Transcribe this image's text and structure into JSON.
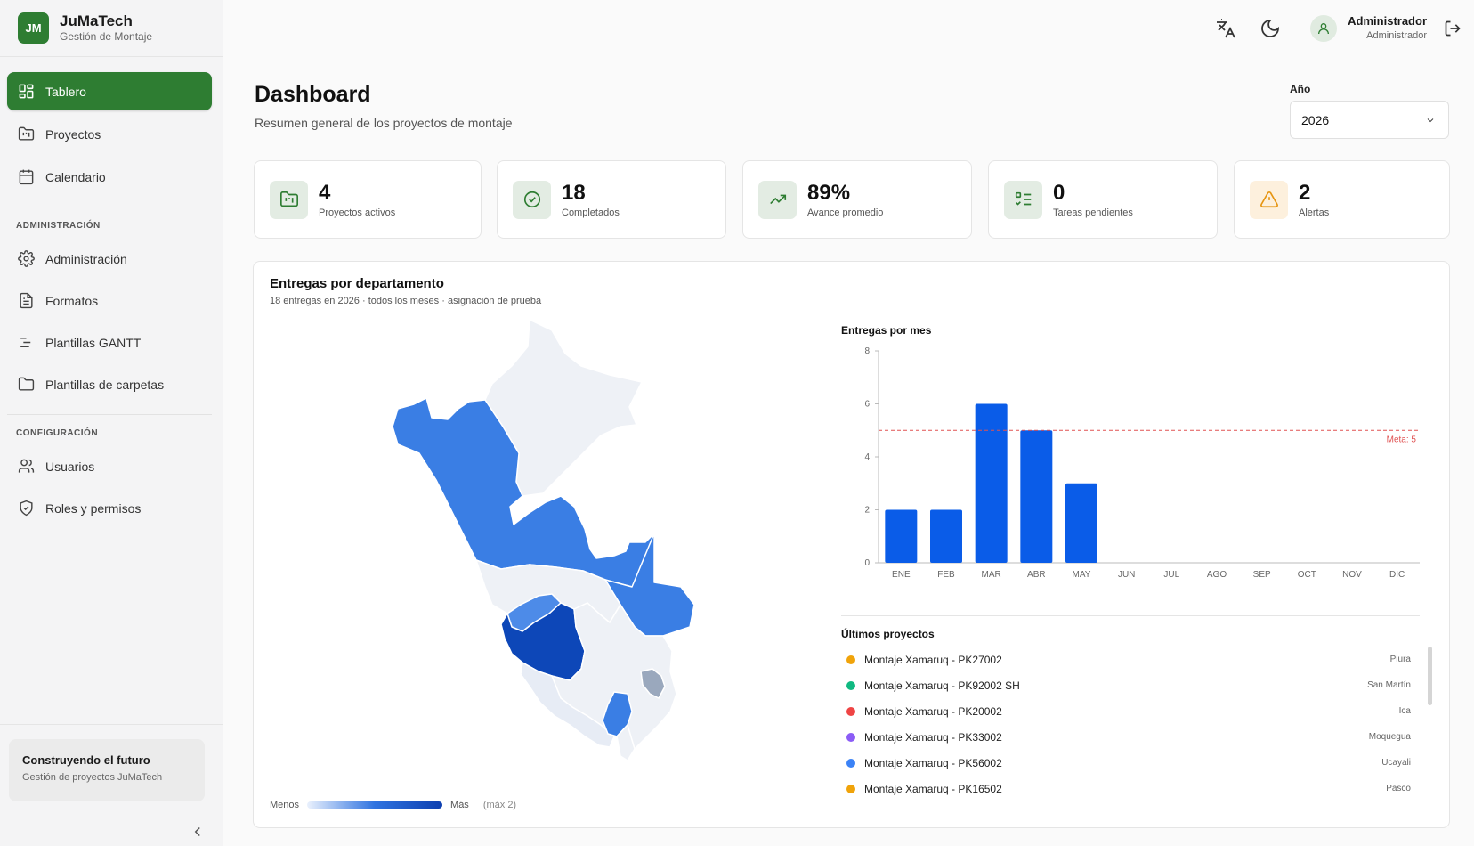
{
  "brand": {
    "initials": "JM",
    "name": "JuMaTech",
    "subtitle": "Gestión de Montaje"
  },
  "sidebar": {
    "items": [
      {
        "label": "Tablero",
        "icon": "dashboard-icon",
        "active": true
      },
      {
        "label": "Proyectos",
        "icon": "folder-kanban-icon"
      },
      {
        "label": "Calendario",
        "icon": "calendar-icon"
      }
    ],
    "admin_section": "ADMINISTRACIÓN",
    "admin_items": [
      {
        "label": "Administración",
        "icon": "gear-icon"
      },
      {
        "label": "Formatos",
        "icon": "document-icon"
      },
      {
        "label": "Plantillas GANTT",
        "icon": "gantt-icon"
      },
      {
        "label": "Plantillas de carpetas",
        "icon": "folder-icon"
      }
    ],
    "config_section": "CONFIGURACIÓN",
    "config_items": [
      {
        "label": "Usuarios",
        "icon": "users-icon"
      },
      {
        "label": "Roles y permisos",
        "icon": "shield-icon"
      }
    ],
    "footer_card": {
      "title": "Construyendo el futuro",
      "subtitle": "Gestión de proyectos JuMaTech"
    }
  },
  "topbar": {
    "user_name": "Administrador",
    "user_role": "Administrador"
  },
  "header": {
    "title": "Dashboard",
    "subtitle": "Resumen general de los proyectos de montaje"
  },
  "year_filter": {
    "label": "Año",
    "value": "2026"
  },
  "stats": [
    {
      "value": "4",
      "label": "Proyectos activos",
      "icon": "folder-chart-icon"
    },
    {
      "value": "18",
      "label": "Completados",
      "icon": "check-circle-icon"
    },
    {
      "value": "89%",
      "label": "Avance promedio",
      "icon": "trending-up-icon"
    },
    {
      "value": "0",
      "label": "Tareas pendientes",
      "icon": "task-list-icon"
    },
    {
      "value": "2",
      "label": "Alertas",
      "icon": "warning-icon"
    }
  ],
  "panel": {
    "title": "Entregas por departamento",
    "subtitle": "18 entregas en 2026 · todos los meses · asignación de prueba",
    "legend": {
      "min": "Menos",
      "max": "Más",
      "max_note": "(máx 2)"
    }
  },
  "chart_data": {
    "type": "bar",
    "title": "Entregas por mes",
    "categories": [
      "ENE",
      "FEB",
      "MAR",
      "ABR",
      "MAY",
      "JUN",
      "JUL",
      "AGO",
      "SEP",
      "OCT",
      "NOV",
      "DIC"
    ],
    "values": [
      2,
      2,
      6,
      5,
      3,
      0,
      0,
      0,
      0,
      0,
      0,
      0
    ],
    "ylim": [
      0,
      8
    ],
    "yticks": [
      0,
      2,
      4,
      6,
      8
    ],
    "target": {
      "label": "Meta: 5",
      "value": 5
    },
    "bar_color": "#0a5ce8",
    "target_color": "#e05252",
    "grid": false
  },
  "recent": {
    "title": "Últimos proyectos",
    "items": [
      {
        "name": "Montaje Xamaruq - PK27002",
        "location": "Piura",
        "color": "#f0a30a"
      },
      {
        "name": "Montaje Xamaruq - PK92002 SH",
        "location": "San Martín",
        "color": "#10b981"
      },
      {
        "name": "Montaje Xamaruq - PK20002",
        "location": "Ica",
        "color": "#ef4444"
      },
      {
        "name": "Montaje Xamaruq - PK33002",
        "location": "Moquegua",
        "color": "#8b5cf6"
      },
      {
        "name": "Montaje Xamaruq - PK56002",
        "location": "Ucayali",
        "color": "#3b82f6"
      },
      {
        "name": "Montaje Xamaruq - PK16502",
        "location": "Pasco",
        "color": "#f0a30a"
      }
    ]
  }
}
